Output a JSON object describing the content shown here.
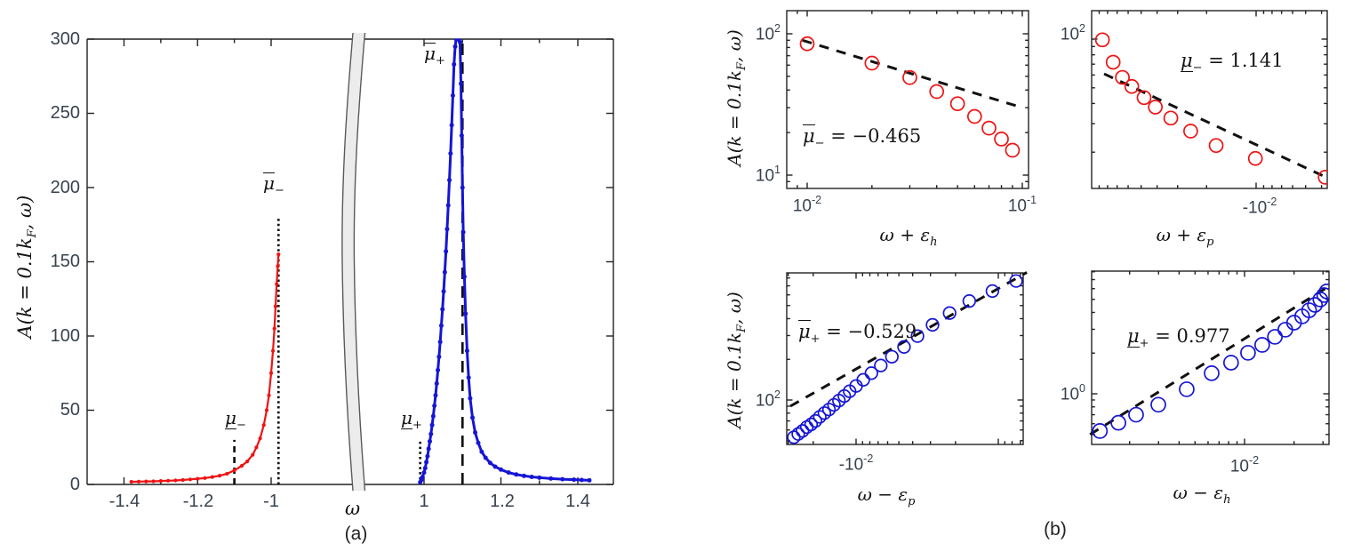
{
  "colors": {
    "red": "#f01212",
    "blue": "#1515d6",
    "black_dash": "#111111",
    "tick_text": "#38424e",
    "band_fill": "#ececec",
    "band_edge": "#5a5a5a",
    "spine": "#222222"
  },
  "panel_a": {
    "caption": "(a)",
    "xlabel": "ω",
    "ylabel": {
      "p1": "A(k = 0.1k",
      "sub": "F",
      "p2": ", ω)"
    },
    "yticks": [
      "0",
      "50",
      "100",
      "150",
      "200",
      "250",
      "300"
    ],
    "xticks": [
      "-1.4",
      "-1.2",
      "-1",
      "1",
      "1.2",
      "1.4"
    ],
    "labels": {
      "mu_bar_minus": {
        "base": "μ",
        "sub": "−"
      },
      "mu_minus": {
        "base": "μ",
        "sub": "−"
      },
      "mu_bar_plus": {
        "base": "μ",
        "sub": "+"
      },
      "mu_plus": {
        "base": "μ",
        "sub": "+"
      }
    }
  },
  "panel_b": {
    "caption": "(b)",
    "ylabel": {
      "p1": "A(k = 0.1k",
      "sub": "F",
      "p2": ", ω)"
    },
    "subplots": [
      {
        "id": "top-left",
        "xlabel": {
          "p1": "ω + ε",
          "sub": "h"
        },
        "annotation": {
          "base": "μ",
          "deco": "over",
          "sub": "−",
          "eq": " = −0.465"
        },
        "xtick_labels": [
          {
            "base": "10",
            "exp": "-2"
          },
          {
            "base": "10",
            "exp": "-1"
          }
        ],
        "ytick_labels": [
          {
            "base": "10",
            "exp": "2"
          },
          {
            "base": "10",
            "exp": "1"
          }
        ]
      },
      {
        "id": "top-right",
        "xlabel": {
          "p1": "ω + ε",
          "sub": "p"
        },
        "annotation": {
          "base": "μ",
          "deco": "under",
          "sub": "−",
          "eq": " = 1.141"
        },
        "xtick_labels": [
          {
            "base": "-10",
            "exp": "-2"
          }
        ],
        "ytick_labels": [
          {
            "base": "10",
            "exp": "2"
          }
        ]
      },
      {
        "id": "bottom-left",
        "xlabel": {
          "p1": "ω − ε",
          "sub": "p"
        },
        "annotation": {
          "base": "μ",
          "deco": "over",
          "sub": "+",
          "eq": " = −0.529"
        },
        "xtick_labels": [
          {
            "base": "-10",
            "exp": "-2"
          }
        ],
        "ytick_labels": [
          {
            "base": "10",
            "exp": "2"
          }
        ]
      },
      {
        "id": "bottom-right",
        "xlabel": {
          "p1": "ω − ε",
          "sub": "h"
        },
        "annotation": {
          "base": "μ",
          "deco": "under",
          "sub": "+",
          "eq": " = 0.977"
        },
        "xtick_labels": [
          {
            "base": "10",
            "exp": "-2"
          }
        ],
        "ytick_labels": [
          {
            "base": "10",
            "exp": "0"
          }
        ]
      }
    ]
  },
  "chart_data": [
    {
      "id": "panel-a",
      "type": "line",
      "xlabel": "ω",
      "ylabel": "A(k = 0.1kF, ω)",
      "ylim": [
        0,
        300
      ],
      "yticks": [
        0,
        50,
        100,
        150,
        200,
        250,
        300
      ],
      "x_axis_break": true,
      "x_segments": [
        {
          "range": [
            -1.5,
            -0.795
          ],
          "ticks": [
            -1.4,
            -1.2,
            -1
          ],
          "minor": [
            -1.3,
            -1.1
          ]
        },
        {
          "range": [
            0.852,
            1.5
          ],
          "ticks": [
            1,
            1.2,
            1.4
          ],
          "minor": [
            1.1,
            1.3
          ]
        }
      ],
      "guides": [
        {
          "id": "mu_bar_minus",
          "label": "μ̄₋",
          "x": -0.98,
          "y0": 0,
          "y1": 180,
          "style": "dotted"
        },
        {
          "id": "mu_minus",
          "label": "μ₋",
          "x": -1.1,
          "y0": 0,
          "y1": 30,
          "style": "dash"
        },
        {
          "id": "mu_bar_plus",
          "label": "μ̄₊",
          "x": 1.1,
          "y0": 0,
          "y1": 300,
          "style": "longdash"
        },
        {
          "id": "mu_plus",
          "label": "μ₊",
          "x": 0.99,
          "y0": 0,
          "y1": 30,
          "style": "dotted"
        }
      ],
      "series": [
        {
          "name": "hole-branch",
          "color": "red",
          "marker": "dot",
          "points": [
            [
              -1.38,
              1.8
            ],
            [
              -1.36,
              1.9
            ],
            [
              -1.34,
              2.0
            ],
            [
              -1.32,
              2.1
            ],
            [
              -1.3,
              2.3
            ],
            [
              -1.28,
              2.5
            ],
            [
              -1.26,
              2.7
            ],
            [
              -1.24,
              3.0
            ],
            [
              -1.22,
              3.4
            ],
            [
              -1.2,
              3.8
            ],
            [
              -1.18,
              4.3
            ],
            [
              -1.16,
              5.0
            ],
            [
              -1.14,
              5.9
            ],
            [
              -1.12,
              7.2
            ],
            [
              -1.1,
              9.5
            ],
            [
              -1.08,
              12.5
            ],
            [
              -1.065,
              15.5
            ],
            [
              -1.05,
              20
            ],
            [
              -1.04,
              25
            ],
            [
              -1.03,
              31
            ],
            [
              -1.02,
              40
            ],
            [
              -1.012,
              50
            ],
            [
              -1.006,
              60
            ],
            [
              -1.0,
              75
            ],
            [
              -0.995,
              90
            ],
            [
              -0.991,
              105
            ],
            [
              -0.988,
              120
            ],
            [
              -0.985,
              135
            ],
            [
              -0.982,
              147
            ],
            [
              -0.98,
              155
            ]
          ]
        },
        {
          "name": "particle-branch",
          "color": "blue",
          "marker": "dot",
          "points": [
            [
              0.99,
              1.5
            ],
            [
              0.993,
              3
            ],
            [
              0.996,
              5
            ],
            [
              1.0,
              8
            ],
            [
              1.003,
              11
            ],
            [
              1.006,
              15
            ],
            [
              1.009,
              19
            ],
            [
              1.012,
              24
            ],
            [
              1.015,
              29
            ],
            [
              1.018,
              34
            ],
            [
              1.021,
              40
            ],
            [
              1.024,
              46
            ],
            [
              1.027,
              53
            ],
            [
              1.03,
              60
            ],
            [
              1.033,
              68
            ],
            [
              1.036,
              77
            ],
            [
              1.039,
              86
            ],
            [
              1.042,
              96
            ],
            [
              1.045,
              107
            ],
            [
              1.048,
              118
            ],
            [
              1.051,
              130
            ],
            [
              1.054,
              143
            ],
            [
              1.057,
              157
            ],
            [
              1.06,
              172
            ],
            [
              1.063,
              188
            ],
            [
              1.066,
              205
            ],
            [
              1.069,
              223
            ],
            [
              1.072,
              242
            ],
            [
              1.075,
              262
            ],
            [
              1.078,
              283
            ],
            [
              1.081,
              295
            ],
            [
              1.0835,
              300
            ],
            [
              1.086,
              300
            ],
            [
              1.0885,
              300
            ],
            [
              1.091,
              300
            ],
            [
              1.0935,
              298
            ],
            [
              1.096,
              270
            ],
            [
              1.098,
              235
            ],
            [
              1.1,
              200
            ],
            [
              1.102,
              170
            ],
            [
              1.105,
              140
            ],
            [
              1.108,
              115
            ],
            [
              1.112,
              90
            ],
            [
              1.116,
              72
            ],
            [
              1.12,
              58
            ],
            [
              1.126,
              45
            ],
            [
              1.133,
              35
            ],
            [
              1.141,
              28
            ],
            [
              1.15,
              22
            ],
            [
              1.16,
              18
            ],
            [
              1.172,
              14.5
            ],
            [
              1.185,
              12
            ],
            [
              1.2,
              10
            ],
            [
              1.22,
              8
            ],
            [
              1.24,
              6.7
            ],
            [
              1.26,
              5.8
            ],
            [
              1.28,
              5.1
            ],
            [
              1.3,
              4.6
            ],
            [
              1.33,
              4.0
            ],
            [
              1.36,
              3.5
            ],
            [
              1.39,
              3.2
            ],
            [
              1.41,
              3.0
            ],
            [
              1.43,
              2.8
            ]
          ]
        }
      ]
    },
    {
      "id": "b-top-left",
      "type": "scatter",
      "xscale": "log",
      "yscale": "log",
      "xlabel": "ω + εh",
      "ylabel": "A(k = 0.1kF, ω)",
      "xlim": [
        0.008,
        0.107
      ],
      "ylim": [
        8,
        146
      ],
      "xticks_labeled": [
        0.01,
        0.1
      ],
      "yticks_labeled": [
        100,
        10
      ],
      "series_color": "red",
      "points": [
        [
          0.01,
          85
        ],
        [
          0.02,
          62
        ],
        [
          0.03,
          49
        ],
        [
          0.04,
          39
        ],
        [
          0.05,
          32
        ],
        [
          0.06,
          26
        ],
        [
          0.07,
          21.5
        ],
        [
          0.08,
          18
        ],
        [
          0.09,
          15
        ]
      ],
      "fit_line": {
        "from": [
          0.0095,
          90
        ],
        "to": [
          0.1,
          30
        ]
      },
      "fit_exponent": -0.465
    },
    {
      "id": "b-top-right",
      "type": "scatter",
      "xscale": "negative-log-reversed",
      "yscale": "log",
      "xlabel": "ω + εp",
      "ylabel": "A(k = 0.1kF, ω)",
      "xlim": [
        -0.1,
        -0.0037
      ],
      "ylim": [
        11.9,
        150
      ],
      "xticks_labeled": [
        -0.01
      ],
      "yticks_labeled": [
        100
      ],
      "series_color": "red",
      "points": [
        [
          -0.086,
          99
        ],
        [
          -0.074,
          72
        ],
        [
          -0.065,
          58
        ],
        [
          -0.057,
          51
        ],
        [
          -0.048,
          43.5
        ],
        [
          -0.041,
          38
        ],
        [
          -0.033,
          32.5
        ],
        [
          -0.025,
          27
        ],
        [
          -0.0175,
          22
        ],
        [
          -0.0101,
          18.3
        ],
        [
          -0.0038,
          14
        ]
      ],
      "fit_line": {
        "from": [
          -0.084,
          61
        ],
        "to": [
          -0.0037,
          13.9
        ]
      },
      "fit_exponent": 1.141
    },
    {
      "id": "b-bottom-left",
      "type": "scatter",
      "xscale": "negative-log-reversed",
      "yscale": "log",
      "xlabel": "ω − εp",
      "ylabel": "A(k = 0.1kF, ω)",
      "xlim": [
        -0.0307,
        -0.00067
      ],
      "ylim": [
        46.9,
        875
      ],
      "xticks_labeled": [
        -0.01
      ],
      "yticks_labeled": [
        100
      ],
      "series_color": "blue",
      "points": [
        [
          -0.0274,
          53
        ],
        [
          -0.0255,
          56
        ],
        [
          -0.0238,
          59
        ],
        [
          -0.0222,
          63
        ],
        [
          -0.0207,
          66
        ],
        [
          -0.0193,
          70
        ],
        [
          -0.018,
          75
        ],
        [
          -0.0167,
          80
        ],
        [
          -0.0155,
          85
        ],
        [
          -0.0143,
          92
        ],
        [
          -0.0132,
          99
        ],
        [
          -0.0121,
          107
        ],
        [
          -0.0111,
          116
        ],
        [
          -0.01,
          127
        ],
        [
          -0.0089,
          141
        ],
        [
          -0.0078,
          158
        ],
        [
          -0.0067,
          180
        ],
        [
          -0.0056,
          209
        ],
        [
          -0.0046,
          247
        ],
        [
          -0.0037,
          297
        ],
        [
          -0.0029,
          360
        ],
        [
          -0.0022,
          440
        ],
        [
          -0.0016,
          540
        ],
        [
          -0.0011,
          640
        ],
        [
          -0.00075,
          760
        ]
      ],
      "fit_line": {
        "from": [
          -0.029,
          90
        ],
        "to": [
          -0.00063,
          880
        ]
      },
      "fit_exponent": -0.529
    },
    {
      "id": "b-bottom-right",
      "type": "scatter",
      "xscale": "log",
      "yscale": "log",
      "xlabel": "ω − εh",
      "ylabel": "A(k = 0.1kF, ω)",
      "xlim": [
        0.00118,
        0.0327
      ],
      "ylim": [
        0.42,
        8.1
      ],
      "xticks_labeled": [
        0.01
      ],
      "yticks_labeled": [
        1
      ],
      "series_color": "blue",
      "points": [
        [
          0.00132,
          0.53
        ],
        [
          0.00171,
          0.61
        ],
        [
          0.00219,
          0.7
        ],
        [
          0.00299,
          0.83
        ],
        [
          0.00445,
          1.08
        ],
        [
          0.00631,
          1.42
        ],
        [
          0.00828,
          1.7
        ],
        [
          0.0105,
          2.01
        ],
        [
          0.0128,
          2.3
        ],
        [
          0.0153,
          2.64
        ],
        [
          0.0177,
          2.98
        ],
        [
          0.02,
          3.36
        ],
        [
          0.0224,
          3.74
        ],
        [
          0.0247,
          4.15
        ],
        [
          0.0268,
          4.55
        ],
        [
          0.0289,
          4.99
        ],
        [
          0.0305,
          5.38
        ],
        [
          0.0316,
          5.72
        ]
      ],
      "fit_line": {
        "from": [
          0.00115,
          0.5
        ],
        "to": [
          0.033,
          6.3
        ]
      },
      "fit_exponent": 0.977
    }
  ]
}
